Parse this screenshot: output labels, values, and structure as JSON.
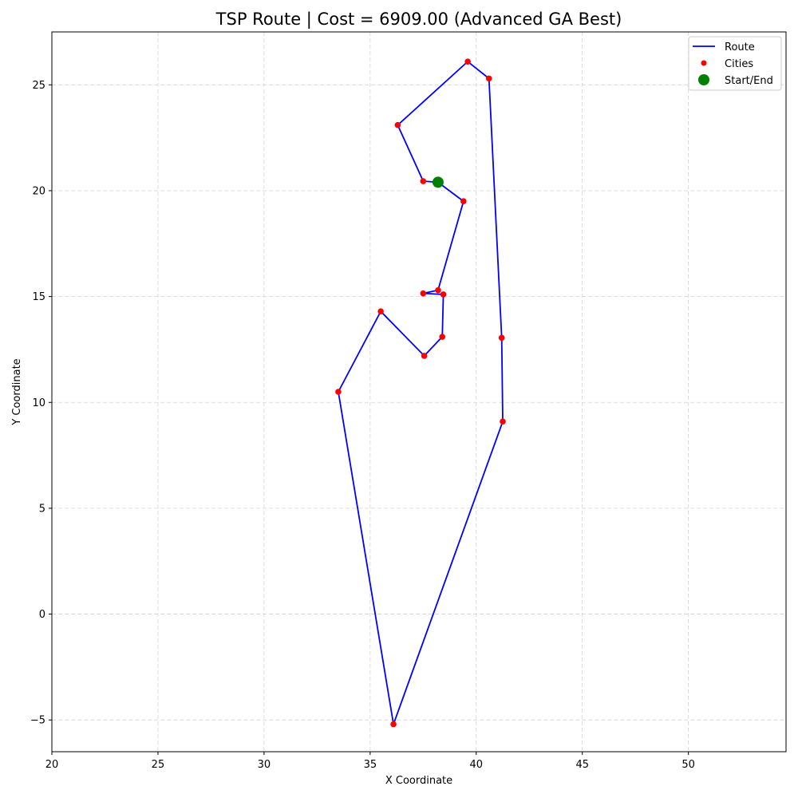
{
  "chart_data": {
    "type": "line",
    "title": "TSP Route | Cost = 6909.00 (Advanced GA Best)",
    "xlabel": "X Coordinate",
    "ylabel": "Y Coordinate",
    "xlim": [
      20,
      54.6
    ],
    "ylim": [
      -6.5,
      27.5
    ],
    "xticks": [
      20,
      25,
      30,
      35,
      40,
      45,
      50
    ],
    "yticks": [
      -5,
      0,
      5,
      10,
      15,
      20,
      25
    ],
    "xtick_labels": [
      "20",
      "25",
      "30",
      "35",
      "40",
      "45",
      "50"
    ],
    "ytick_labels": [
      "−5",
      "0",
      "5",
      "10",
      "15",
      "20",
      "25"
    ],
    "grid": true,
    "legend_placement": "top-right",
    "colors": {
      "route": "#0000ff",
      "cities": "#ff0000",
      "start": "#008000",
      "grid": "#d3d3d3"
    },
    "series": [
      {
        "name": "Route",
        "kind": "line",
        "points": [
          [
            38.2,
            20.4
          ],
          [
            39.4,
            19.5
          ],
          [
            38.2,
            15.3
          ],
          [
            37.5,
            15.15
          ],
          [
            38.45,
            15.1
          ],
          [
            38.4,
            13.1
          ],
          [
            37.55,
            12.2
          ],
          [
            35.5,
            14.3
          ],
          [
            33.5,
            10.5
          ],
          [
            36.1,
            -5.2
          ],
          [
            41.25,
            9.1
          ],
          [
            41.2,
            13.05
          ],
          [
            40.6,
            25.3
          ],
          [
            39.6,
            26.1
          ],
          [
            36.3,
            23.1
          ],
          [
            37.5,
            20.45
          ],
          [
            38.2,
            20.4
          ]
        ]
      },
      {
        "name": "Cities",
        "kind": "marker",
        "points": [
          [
            39.4,
            19.5
          ],
          [
            38.2,
            15.3
          ],
          [
            37.5,
            15.15
          ],
          [
            38.45,
            15.1
          ],
          [
            38.4,
            13.1
          ],
          [
            37.55,
            12.2
          ],
          [
            35.5,
            14.3
          ],
          [
            33.5,
            10.5
          ],
          [
            36.1,
            -5.2
          ],
          [
            41.25,
            9.1
          ],
          [
            41.2,
            13.05
          ],
          [
            40.6,
            25.3
          ],
          [
            39.6,
            26.1
          ],
          [
            36.3,
            23.1
          ],
          [
            37.5,
            20.45
          ]
        ]
      },
      {
        "name": "Start/End",
        "kind": "marker",
        "points": [
          [
            38.2,
            20.4
          ]
        ]
      }
    ]
  }
}
